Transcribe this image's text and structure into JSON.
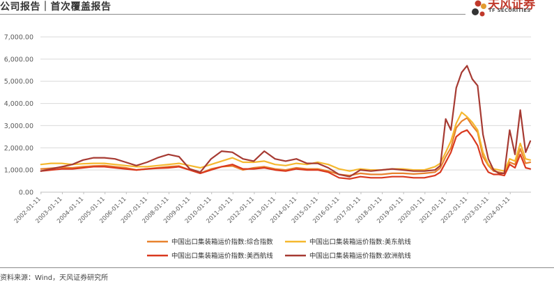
{
  "header": {
    "title": "公司报告｜首次覆盖报告"
  },
  "logo": {
    "name_cn": "天风证券",
    "name_en": "TF SECURITIES"
  },
  "footer": {
    "source": "资料来源：Wind，天风证券研究所"
  },
  "colors": {
    "composite": "#e8822e",
    "us_east": "#f5b82e",
    "us_west": "#d9381e",
    "europe": "#a63a32",
    "grid": "#d9d9d9",
    "axis_text": "#595959"
  },
  "chart_data": {
    "type": "line",
    "ylim": [
      0,
      7000
    ],
    "yticks": [
      "0.00",
      "1,000.00",
      "2,000.00",
      "3,000.00",
      "4,000.00",
      "5,000.00",
      "6,000.00",
      "7,000.00"
    ],
    "ytick_values": [
      0,
      1000,
      2000,
      3000,
      4000,
      5000,
      6000,
      7000
    ],
    "xlim": [
      2002.0,
      2025.0
    ],
    "xtick_labels": [
      "2002-01-11",
      "2003-01-11",
      "2004-01-11",
      "2005-01-11",
      "2006-01-11",
      "2007-01-11",
      "2008-01-11",
      "2009-01-11",
      "2010-01-11",
      "2011-01-11",
      "2012-01-11",
      "2013-01-11",
      "2014-01-11",
      "2015-01-11",
      "2016-01-11",
      "2017-01-11",
      "2018-01-11",
      "2019-01-11",
      "2020-01-11",
      "2021-01-11",
      "2022-01-11",
      "2023-01-11",
      "2024-01-11"
    ],
    "grid": true,
    "legend_position": "bottom",
    "series": [
      {
        "name": "中国出口集装箱运价指数:综合指数",
        "color_key": "composite",
        "x": [
          "2002-01-11",
          "2002-07-01",
          "2003-01-01",
          "2003-07-01",
          "2004-01-01",
          "2004-07-01",
          "2005-01-01",
          "2005-07-01",
          "2006-01-01",
          "2006-07-01",
          "2007-01-01",
          "2007-07-01",
          "2008-01-01",
          "2008-07-01",
          "2009-01-01",
          "2009-07-01",
          "2010-01-01",
          "2010-07-01",
          "2011-01-01",
          "2011-07-01",
          "2012-01-01",
          "2012-07-01",
          "2013-01-01",
          "2013-07-01",
          "2014-01-01",
          "2014-07-01",
          "2015-01-01",
          "2015-07-01",
          "2016-01-01",
          "2016-07-01",
          "2017-01-01",
          "2017-07-01",
          "2018-01-01",
          "2018-07-01",
          "2019-01-01",
          "2019-07-01",
          "2020-01-01",
          "2020-07-01",
          "2020-10-01",
          "2021-01-01",
          "2021-04-01",
          "2021-07-01",
          "2021-10-01",
          "2022-01-01",
          "2022-04-01",
          "2022-07-01",
          "2022-10-01",
          "2023-01-01",
          "2023-04-01",
          "2023-07-01",
          "2023-10-01",
          "2024-01-01",
          "2024-04-01",
          "2024-07-01",
          "2024-10-01",
          "2024-12-20"
        ],
        "y": [
          1050,
          1080,
          1120,
          1100,
          1150,
          1180,
          1200,
          1150,
          1100,
          1000,
          1050,
          1100,
          1150,
          1180,
          1000,
          850,
          1050,
          1150,
          1180,
          1000,
          1100,
          1150,
          1050,
          1000,
          1100,
          1050,
          1050,
          950,
          800,
          750,
          850,
          800,
          800,
          850,
          850,
          820,
          850,
          900,
          1100,
          1600,
          2000,
          2900,
          3200,
          3350,
          3000,
          2700,
          1600,
          1200,
          950,
          900,
          850,
          1350,
          1250,
          1950,
          1300,
          1350
        ]
      },
      {
        "name": "中国出口集装箱运价指数:美东航线",
        "color_key": "us_east",
        "x": [
          "2002-01-11",
          "2002-07-01",
          "2003-01-01",
          "2003-07-01",
          "2004-01-01",
          "2004-07-01",
          "2005-01-01",
          "2005-07-01",
          "2006-01-01",
          "2006-07-01",
          "2007-01-01",
          "2007-07-01",
          "2008-01-01",
          "2008-07-01",
          "2009-01-01",
          "2009-07-01",
          "2010-01-01",
          "2010-07-01",
          "2011-01-01",
          "2011-07-01",
          "2012-01-01",
          "2012-07-01",
          "2013-01-01",
          "2013-07-01",
          "2014-01-01",
          "2014-07-01",
          "2015-01-01",
          "2015-07-01",
          "2016-01-01",
          "2016-07-01",
          "2017-01-01",
          "2017-07-01",
          "2018-01-01",
          "2018-07-01",
          "2019-01-01",
          "2019-07-01",
          "2020-01-01",
          "2020-07-01",
          "2020-10-01",
          "2021-01-01",
          "2021-04-01",
          "2021-07-01",
          "2021-10-01",
          "2022-01-01",
          "2022-04-01",
          "2022-07-01",
          "2022-10-01",
          "2023-01-01",
          "2023-04-01",
          "2023-07-01",
          "2023-10-01",
          "2024-01-01",
          "2024-04-01",
          "2024-07-01",
          "2024-10-01",
          "2024-12-20"
        ],
        "y": [
          1250,
          1300,
          1300,
          1250,
          1280,
          1300,
          1300,
          1250,
          1200,
          1150,
          1150,
          1200,
          1250,
          1300,
          1200,
          1100,
          1250,
          1400,
          1550,
          1350,
          1350,
          1400,
          1250,
          1200,
          1300,
          1250,
          1350,
          1250,
          1050,
          950,
          1050,
          1000,
          1000,
          1050,
          1050,
          1000,
          1000,
          1150,
          1300,
          1800,
          2300,
          3100,
          3600,
          3400,
          3150,
          2800,
          1800,
          1250,
          1050,
          1000,
          950,
          1500,
          1400,
          2200,
          1500,
          1450
        ]
      },
      {
        "name": "中国出口集装箱运价指数:美西航线",
        "color_key": "us_west",
        "x": [
          "2002-01-11",
          "2002-07-01",
          "2003-01-01",
          "2003-07-01",
          "2004-01-01",
          "2004-07-01",
          "2005-01-01",
          "2005-07-01",
          "2006-01-01",
          "2006-07-01",
          "2007-01-01",
          "2007-07-01",
          "2008-01-01",
          "2008-07-01",
          "2009-01-01",
          "2009-07-01",
          "2010-01-01",
          "2010-07-01",
          "2011-01-01",
          "2011-07-01",
          "2012-01-01",
          "2012-07-01",
          "2013-01-01",
          "2013-07-01",
          "2014-01-01",
          "2014-07-01",
          "2015-01-01",
          "2015-07-01",
          "2016-01-01",
          "2016-07-01",
          "2017-01-01",
          "2017-07-01",
          "2018-01-01",
          "2018-07-01",
          "2019-01-01",
          "2019-07-01",
          "2020-01-01",
          "2020-07-01",
          "2020-10-01",
          "2021-01-01",
          "2021-04-01",
          "2021-07-01",
          "2021-10-01",
          "2022-01-01",
          "2022-04-01",
          "2022-07-01",
          "2022-10-01",
          "2023-01-01",
          "2023-04-01",
          "2023-07-01",
          "2023-10-01",
          "2024-01-01",
          "2024-04-01",
          "2024-07-01",
          "2024-10-01",
          "2024-12-20"
        ],
        "y": [
          950,
          1000,
          1050,
          1050,
          1100,
          1150,
          1150,
          1100,
          1050,
          1000,
          1050,
          1080,
          1100,
          1150,
          1000,
          850,
          1000,
          1150,
          1250,
          1050,
          1050,
          1100,
          1000,
          950,
          1050,
          1000,
          1000,
          900,
          650,
          600,
          700,
          650,
          650,
          700,
          700,
          650,
          650,
          750,
          900,
          1350,
          1800,
          2500,
          2700,
          2800,
          2500,
          2100,
          1300,
          900,
          800,
          800,
          750,
          1250,
          1100,
          1700,
          1100,
          1050
        ]
      },
      {
        "name": "中国出口集装箱运价指数:欧洲航线",
        "color_key": "europe",
        "x": [
          "2002-01-11",
          "2002-07-01",
          "2003-01-01",
          "2003-07-01",
          "2004-01-01",
          "2004-07-01",
          "2005-01-01",
          "2005-07-01",
          "2006-01-01",
          "2006-07-01",
          "2007-01-01",
          "2007-07-01",
          "2008-01-01",
          "2008-07-01",
          "2009-01-01",
          "2009-07-01",
          "2010-01-01",
          "2010-07-01",
          "2011-01-01",
          "2011-07-01",
          "2012-01-01",
          "2012-07-01",
          "2013-01-01",
          "2013-07-01",
          "2014-01-01",
          "2014-07-01",
          "2015-01-01",
          "2015-07-01",
          "2016-01-01",
          "2016-07-01",
          "2017-01-01",
          "2017-07-01",
          "2018-01-01",
          "2018-07-01",
          "2019-01-01",
          "2019-07-01",
          "2020-01-01",
          "2020-07-01",
          "2020-10-01",
          "2021-01-01",
          "2021-04-01",
          "2021-07-01",
          "2021-10-01",
          "2022-01-01",
          "2022-04-01",
          "2022-07-01",
          "2022-10-01",
          "2023-01-01",
          "2023-04-01",
          "2023-07-01",
          "2023-10-01",
          "2024-01-01",
          "2024-04-01",
          "2024-07-01",
          "2024-10-01",
          "2024-12-20"
        ],
        "y": [
          950,
          1050,
          1150,
          1250,
          1450,
          1550,
          1550,
          1500,
          1350,
          1200,
          1350,
          1550,
          1700,
          1600,
          1050,
          900,
          1500,
          1850,
          1800,
          1500,
          1400,
          1850,
          1500,
          1400,
          1500,
          1300,
          1300,
          1100,
          800,
          700,
          1000,
          950,
          1000,
          1050,
          1000,
          950,
          950,
          1000,
          1200,
          3300,
          2800,
          4700,
          5400,
          5700,
          5100,
          4800,
          2600,
          1500,
          1000,
          850,
          850,
          2800,
          1700,
          3700,
          1800,
          2300
        ]
      }
    ]
  }
}
